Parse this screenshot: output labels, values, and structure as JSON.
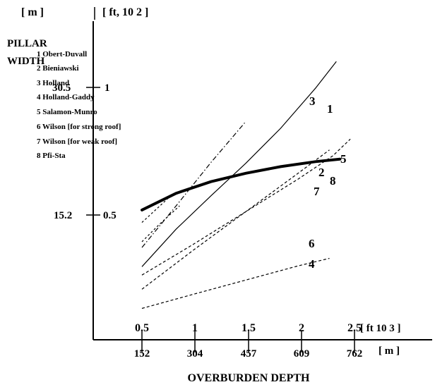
{
  "chart_data": {
    "type": "line",
    "y_axis": {
      "unit_m": "[ m ]",
      "unit_ft": "[ ft, 10 2 ]",
      "label_line1": "PILLAR",
      "label_line2": "WIDTH",
      "ticks": [
        {
          "m": "30.5",
          "ft": "1",
          "value_m": 30.5
        },
        {
          "m": "15.2",
          "ft": "0.5",
          "value_m": 15.2
        }
      ]
    },
    "x_axis": {
      "label": "OVERBURDEN DEPTH",
      "unit_ft": "[ ft 10 3 ]",
      "unit_m": "[ m ]",
      "ticks_ft": [
        "0.5",
        "1",
        "1.5",
        "2",
        "2.5"
      ],
      "ticks_m": [
        "152",
        "304",
        "457",
        "609",
        "762"
      ],
      "tick_values_m": [
        152,
        304,
        457,
        609,
        762
      ]
    },
    "xlim": [
      0,
      830
    ],
    "ylim": [
      0,
      40
    ],
    "legend": [
      "1 Obert-Duvall",
      "2 Bieniawski",
      "3 Holland",
      "4 Holland-Gaddy",
      "5 Salamon-Munro",
      "6 Wilson [for strong roof]",
      "7 Wilson [for weak roof]",
      "8 Pfi-Sta"
    ],
    "series": [
      {
        "label": "1",
        "style": "solid-thin",
        "x": [
          152,
          250,
          350,
          450,
          550,
          650,
          710
        ],
        "y": [
          9.0,
          13.5,
          17.5,
          21.4,
          25.6,
          30.4,
          33.6
        ]
      },
      {
        "label": "2",
        "style": "dashed",
        "x": [
          152,
          300,
          450,
          600,
          690
        ],
        "y": [
          6.3,
          11.0,
          15.6,
          20.2,
          23.0
        ]
      },
      {
        "label": "3",
        "style": "dashdot",
        "x": [
          152,
          250,
          350,
          450
        ],
        "y": [
          11.3,
          16.3,
          21.5,
          26.4
        ]
      },
      {
        "label": "4",
        "style": "dashed",
        "x": [
          152,
          300,
          450,
          600,
          690
        ],
        "y": [
          4.0,
          5.7,
          7.4,
          9.1,
          10.0
        ]
      },
      {
        "label": "5",
        "style": "dashed",
        "x": [
          152,
          300,
          450,
          600,
          700,
          750
        ],
        "y": [
          8.0,
          11.7,
          15.6,
          19.5,
          22.3,
          24.3
        ]
      },
      {
        "label": "6",
        "style": "dashed",
        "x": [
          152,
          200,
          260
        ],
        "y": [
          12.0,
          14.0,
          16.3
        ]
      },
      {
        "label": "7",
        "style": "dashed",
        "x": [
          152,
          240
        ],
        "y": [
          14.3,
          17.7
        ]
      },
      {
        "label": "8",
        "style": "solid-thick",
        "x": [
          152,
          250,
          350,
          450,
          550,
          650,
          720
        ],
        "y": [
          15.8,
          17.8,
          19.2,
          20.2,
          21.0,
          21.6,
          21.9
        ]
      }
    ],
    "curve_labels": [
      "1",
      "2",
      "3",
      "4",
      "5",
      "6",
      "7",
      "8"
    ]
  }
}
